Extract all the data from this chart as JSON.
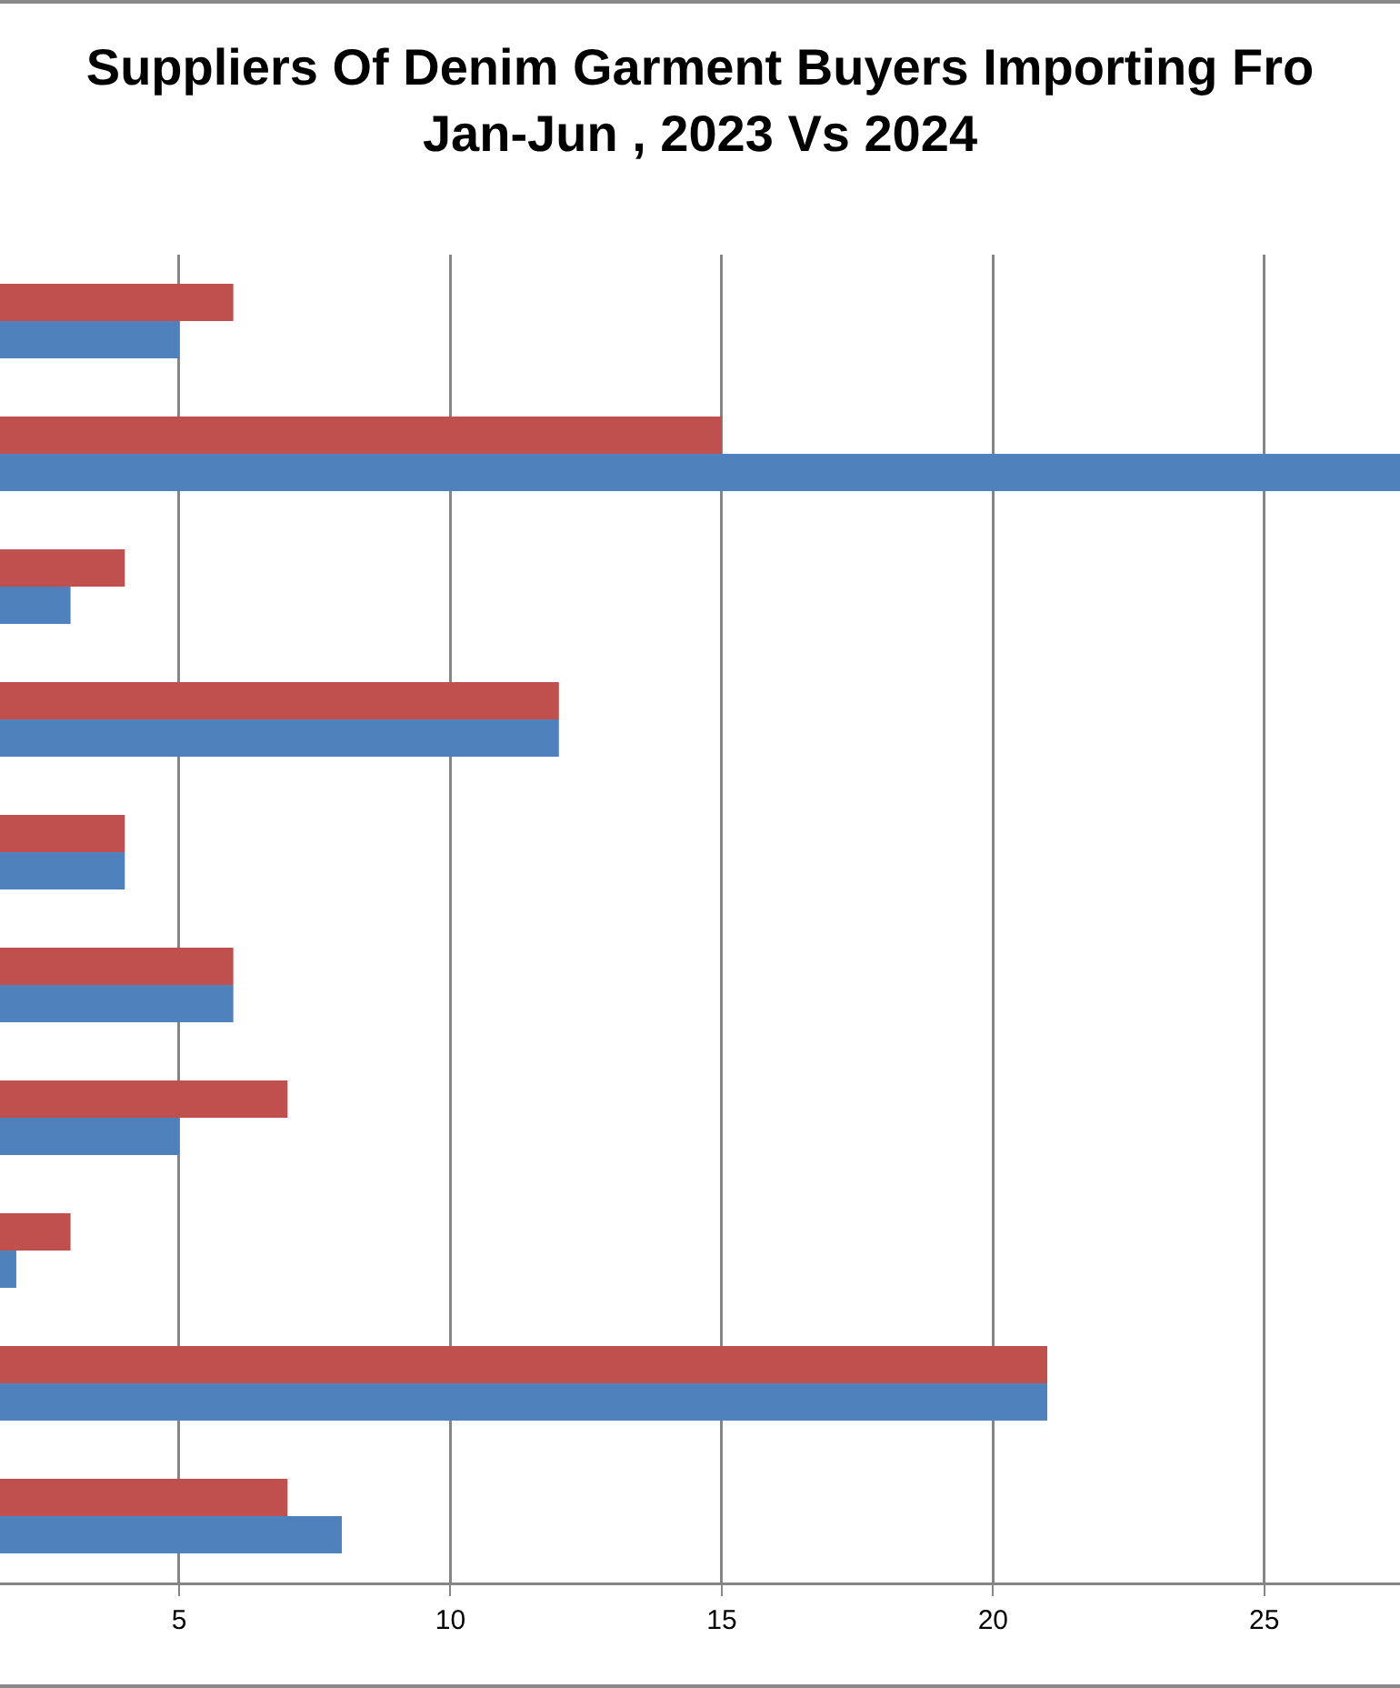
{
  "chart_data": {
    "type": "bar",
    "orientation": "horizontal",
    "title": "Suppliers Of Denim Garment Buyers Importing Fro\nJan-Jun , 2023 Vs 2024",
    "categories": [
      null,
      null,
      null,
      null,
      null,
      null,
      null,
      null,
      null,
      null
    ],
    "series": [
      {
        "color": "#c0504d",
        "values": [
          6,
          15,
          4,
          12,
          4,
          6,
          7,
          3,
          21,
          7
        ]
      },
      {
        "color": "#4f81bd",
        "values": [
          5,
          27.5,
          3,
          12,
          4,
          6,
          5,
          2,
          21,
          8
        ]
      }
    ],
    "xlim": [
      1.7,
      27.5
    ],
    "xticks": [
      5,
      10,
      15,
      20,
      25
    ],
    "grid": "x",
    "tick_labels": "x"
  }
}
